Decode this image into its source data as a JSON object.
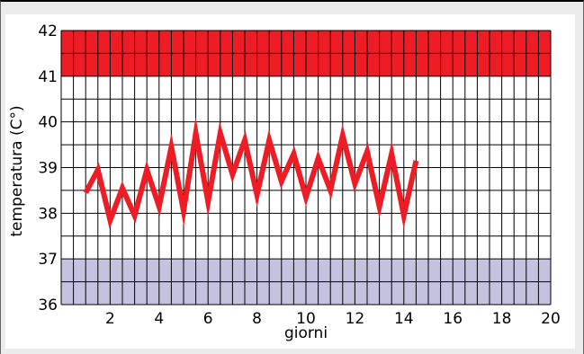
{
  "chart_data": {
    "type": "line",
    "xlabel": "giorni",
    "ylabel": "temperatura (C°)",
    "xlim": [
      0,
      20
    ],
    "ylim": [
      36,
      42
    ],
    "x_ticks": [
      2,
      4,
      6,
      8,
      10,
      12,
      14,
      16,
      18,
      20
    ],
    "y_ticks": [
      36,
      37,
      38,
      39,
      40,
      41,
      42
    ],
    "grid": true,
    "x_grid_step": 0.5,
    "y_grid_step": 0.5,
    "bands": [
      {
        "from": 41,
        "to": 42,
        "color": "#ee1c25"
      },
      {
        "from": 36,
        "to": 37,
        "color": "#c5c2e0"
      }
    ],
    "line_color": "#ee1c25",
    "series": [
      {
        "x": [
          1.0,
          1.5,
          2.0,
          2.5,
          3.0,
          3.5,
          4.0,
          4.5,
          5.0,
          5.5,
          6.0,
          6.5,
          7.0,
          7.5,
          8.0,
          8.5,
          9.0,
          9.5,
          10.0,
          10.5,
          11.0,
          11.5,
          12.0,
          12.5,
          13.0,
          13.5,
          14.0,
          14.5
        ],
        "y": [
          38.45,
          38.95,
          37.85,
          38.55,
          37.95,
          38.95,
          38.15,
          39.45,
          38.05,
          39.75,
          38.25,
          39.75,
          38.85,
          39.6,
          38.4,
          39.6,
          38.7,
          39.3,
          38.35,
          39.2,
          38.5,
          39.7,
          38.65,
          39.35,
          38.15,
          39.3,
          37.95,
          39.15
        ]
      }
    ]
  }
}
